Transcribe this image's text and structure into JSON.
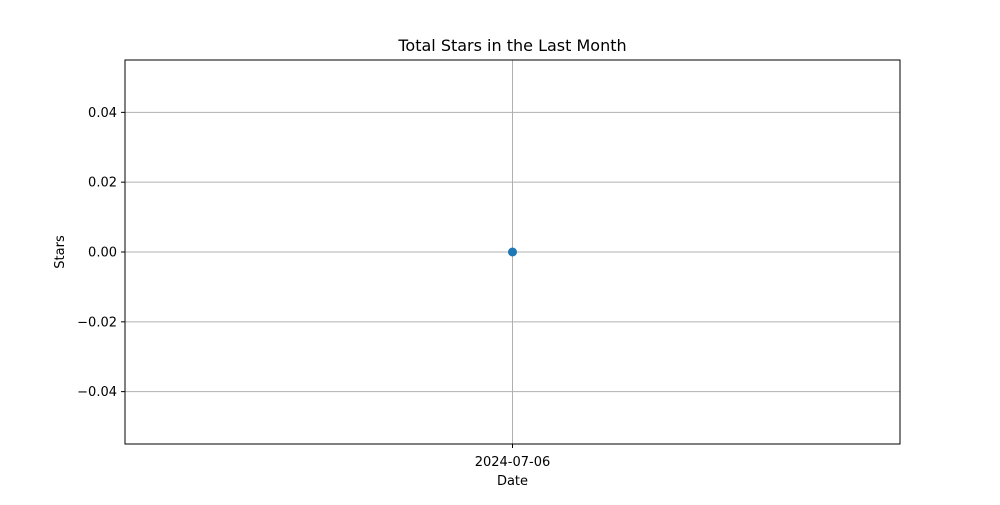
{
  "chart_data": {
    "type": "line",
    "title": "Total Stars in the Last Month",
    "xlabel": "Date",
    "ylabel": "Stars",
    "x": [
      "2024-07-06"
    ],
    "series": [
      {
        "values": [
          0
        ]
      }
    ],
    "ylim": [
      -0.055,
      0.055
    ],
    "yticks": [
      -0.04,
      -0.02,
      0.0,
      0.02,
      0.04
    ],
    "ytick_labels": [
      "−0.04",
      "−0.02",
      "0.00",
      "0.02",
      "0.04"
    ],
    "xticks": [
      "2024-07-06"
    ],
    "grid": true,
    "marker": "circle",
    "colors": {
      "series": "#1f77b4",
      "grid": "#b0b0b0",
      "axes": "#000000"
    }
  }
}
